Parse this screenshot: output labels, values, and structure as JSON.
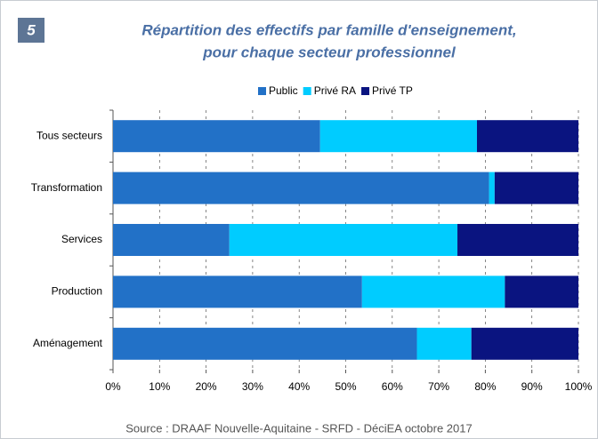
{
  "chart_data": {
    "type": "stacked-barh",
    "badge": "5",
    "title": [
      "Répartition des effectifs par famille d'enseignement,",
      "pour chaque secteur professionnel"
    ],
    "source": "Source : DRAAF Nouvelle-Aquitaine - SRFD - DéciEA octobre 2017",
    "categories": [
      "Tous secteurs",
      "Transformation",
      "Services",
      "Production",
      "Aménagement"
    ],
    "series": [
      {
        "name": "Public",
        "color": "#2271c7",
        "values": [
          44.5,
          80.8,
          25,
          53.5,
          65.3
        ]
      },
      {
        "name": "Privé RA",
        "color": "#00ccff",
        "values": [
          33.7,
          1.2,
          49,
          30.7,
          11.7
        ]
      },
      {
        "name": "Privé TP",
        "color": "#0a1480",
        "values": [
          21.8,
          18,
          26,
          15.8,
          23
        ]
      }
    ],
    "xlim": [
      0,
      100
    ],
    "xticks": [
      {
        "value": 0,
        "label": "0%"
      },
      {
        "value": 10,
        "label": "10%"
      },
      {
        "value": 20,
        "label": "20%"
      },
      {
        "value": 30,
        "label": "30%"
      },
      {
        "value": 40,
        "label": "40%"
      },
      {
        "value": 50,
        "label": "50%"
      },
      {
        "value": 60,
        "label": "60%"
      },
      {
        "value": 70,
        "label": "70%"
      },
      {
        "value": 80,
        "label": "80%"
      },
      {
        "value": 90,
        "label": "90%"
      },
      {
        "value": 100,
        "label": "100%"
      }
    ],
    "grid": true,
    "legend": "top"
  }
}
